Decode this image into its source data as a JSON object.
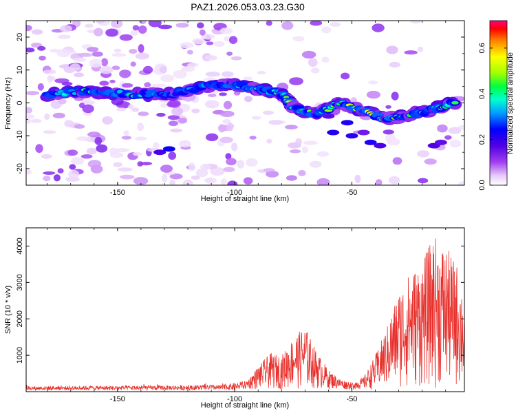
{
  "title": "PAZ1.2026.053.03.23.G30",
  "colors": {
    "snr_line": "#e8302c",
    "axis": "#000000"
  },
  "chart_data": [
    {
      "type": "heatmap",
      "name": "spectrogram",
      "xlabel": "Height of straight line (km)",
      "ylabel": "Frequency (Hz)",
      "xlim": [
        -189,
        -2
      ],
      "ylim": [
        -25,
        25
      ],
      "xticks": [
        -150,
        -100,
        -50
      ],
      "yticks": [
        -20,
        -10,
        0,
        10,
        20
      ],
      "ridge_points": [
        {
          "x": -180,
          "freq": 2.5,
          "amp": 0.32
        },
        {
          "x": -165,
          "freq": 3.5,
          "amp": 0.4
        },
        {
          "x": -155,
          "freq": 3.0,
          "amp": 0.35
        },
        {
          "x": -140,
          "freq": 2.5,
          "amp": 0.42
        },
        {
          "x": -125,
          "freq": 3.0,
          "amp": 0.28
        },
        {
          "x": -110,
          "freq": 5.5,
          "amp": 0.35
        },
        {
          "x": -100,
          "freq": 5.5,
          "amp": 0.4
        },
        {
          "x": -90,
          "freq": 4.0,
          "amp": 0.38
        },
        {
          "x": -80,
          "freq": 3.0,
          "amp": 0.45
        },
        {
          "x": -75,
          "freq": -1.5,
          "amp": 0.5
        },
        {
          "x": -65,
          "freq": -3.5,
          "amp": 0.48
        },
        {
          "x": -55,
          "freq": 0.0,
          "amp": 0.45
        },
        {
          "x": -45,
          "freq": -2.5,
          "amp": 0.62
        },
        {
          "x": -35,
          "freq": -5.0,
          "amp": 0.55
        },
        {
          "x": -25,
          "freq": -3.5,
          "amp": 0.45
        },
        {
          "x": -15,
          "freq": -2.0,
          "amp": 0.42
        },
        {
          "x": -5,
          "freq": 0.5,
          "amp": 0.6
        }
      ],
      "colorbar": {
        "label": "Normalized spectral amplitude",
        "range": [
          0.0,
          0.72
        ],
        "ticks": [
          "0.0",
          "0.2",
          "0.4",
          "0.6"
        ]
      }
    },
    {
      "type": "line",
      "name": "snr",
      "xlabel": "Height of straight line (km)",
      "ylabel": "SNR (10 * v/v)",
      "xlim": [
        -189,
        -2
      ],
      "ylim": [
        0,
        4500
      ],
      "xticks": [
        -150,
        -100,
        -50
      ],
      "yticks": [
        1000,
        2000,
        3000,
        4000
      ],
      "envelope": [
        {
          "x": -189,
          "y": 150
        },
        {
          "x": -160,
          "y": 160
        },
        {
          "x": -130,
          "y": 170
        },
        {
          "x": -105,
          "y": 190
        },
        {
          "x": -95,
          "y": 300
        },
        {
          "x": -90,
          "y": 700
        },
        {
          "x": -85,
          "y": 1050
        },
        {
          "x": -80,
          "y": 1000
        },
        {
          "x": -75,
          "y": 1500
        },
        {
          "x": -70,
          "y": 1800
        },
        {
          "x": -65,
          "y": 1100
        },
        {
          "x": -60,
          "y": 600
        },
        {
          "x": -55,
          "y": 350
        },
        {
          "x": -50,
          "y": 250
        },
        {
          "x": -45,
          "y": 400
        },
        {
          "x": -40,
          "y": 1000
        },
        {
          "x": -35,
          "y": 1800
        },
        {
          "x": -30,
          "y": 2800
        },
        {
          "x": -25,
          "y": 3300
        },
        {
          "x": -20,
          "y": 3600
        },
        {
          "x": -15,
          "y": 4300
        },
        {
          "x": -10,
          "y": 4000
        },
        {
          "x": -5,
          "y": 3500
        },
        {
          "x": -2,
          "y": 2600
        }
      ]
    }
  ]
}
